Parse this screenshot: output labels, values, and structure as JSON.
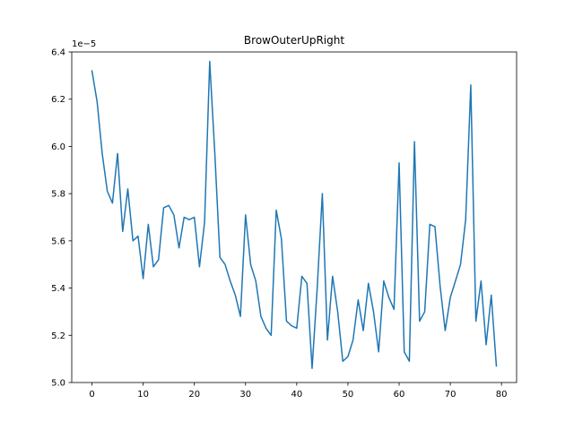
{
  "chart_data": {
    "type": "line",
    "title": "BrowOuterUpRight",
    "xlabel": "",
    "ylabel": "",
    "y_offset_label": "1e−5",
    "xlim": [
      -3.95,
      82.95
    ],
    "ylim": [
      5.0,
      6.4
    ],
    "x_ticks": [
      0,
      10,
      20,
      30,
      40,
      50,
      60,
      70,
      80
    ],
    "y_ticks": [
      5.0,
      5.2,
      5.4,
      5.6,
      5.8,
      6.0,
      6.2,
      6.4
    ],
    "x_tick_labels": [
      "0",
      "10",
      "20",
      "30",
      "40",
      "50",
      "60",
      "70",
      "80"
    ],
    "y_tick_labels": [
      "5.0",
      "5.2",
      "5.4",
      "5.6",
      "5.8",
      "6.0",
      "6.2",
      "6.4"
    ],
    "grid": false,
    "line_color": "#1f77b4",
    "series": [
      {
        "values": [
          6.32,
          6.19,
          5.97,
          5.81,
          5.76,
          5.97,
          5.64,
          5.82,
          5.6,
          5.62,
          5.44,
          5.67,
          5.49,
          5.52,
          5.74,
          5.75,
          5.71,
          5.57,
          5.7,
          5.69,
          5.7,
          5.49,
          5.68,
          6.36,
          5.97,
          5.53,
          5.5,
          5.43,
          5.37,
          5.28,
          5.71,
          5.5,
          5.43,
          5.28,
          5.23,
          5.2,
          5.73,
          5.61,
          5.26,
          5.24,
          5.23,
          5.45,
          5.42,
          5.06,
          5.4,
          5.8,
          5.18,
          5.45,
          5.3,
          5.09,
          5.11,
          5.18,
          5.35,
          5.22,
          5.42,
          5.3,
          5.13,
          5.43,
          5.36,
          5.31,
          5.93,
          5.13,
          5.09,
          6.02,
          5.26,
          5.3,
          5.67,
          5.66,
          5.41,
          5.22,
          5.36,
          5.43,
          5.5,
          5.69,
          6.26,
          5.26,
          5.43,
          5.16,
          5.37,
          5.07
        ]
      }
    ]
  }
}
